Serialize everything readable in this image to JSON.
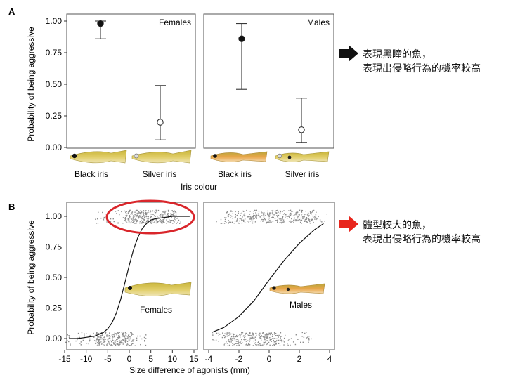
{
  "panel_a": {
    "letter": "A",
    "ylabel": "Probability of being aggressive",
    "xlabel": "Iris colour"
  },
  "panel_b": {
    "letter": "B",
    "ylabel": "Probability of being aggressive",
    "xlabel": "Size difference of agonists (mm)"
  },
  "note_a": {
    "line1": "表現黑瞳的魚，",
    "line2": "表現出侵略行為的機率較高"
  },
  "note_b": {
    "line1": "體型較大的魚，",
    "line2": "表現出侵略行為的機率較高"
  },
  "colors": {
    "arrow_a": "#111111",
    "arrow_b": "#e8251c",
    "highlight": "#d9262b",
    "frame": "#555555"
  },
  "chart_data": [
    {
      "type": "scatter",
      "subtype": "point-with-error-bars",
      "panel": "A",
      "facet": "Females",
      "categories": [
        "Black iris",
        "Silver iris"
      ],
      "values": [
        0.98,
        0.2
      ],
      "lower": [
        0.86,
        0.06
      ],
      "upper": [
        1.0,
        0.49
      ],
      "marker_fill": [
        "#111111",
        "#ffffff"
      ],
      "ylabel": "Probability of being aggressive",
      "xlabel": "Iris colour",
      "yticks": [
        "0.00",
        "0.25",
        "0.50",
        "0.75",
        "1.00"
      ],
      "ylim": [
        0,
        1
      ]
    },
    {
      "type": "scatter",
      "subtype": "point-with-error-bars",
      "panel": "A",
      "facet": "Males",
      "categories": [
        "Black iris",
        "Silver iris"
      ],
      "values": [
        0.86,
        0.14
      ],
      "lower": [
        0.46,
        0.04
      ],
      "upper": [
        0.98,
        0.39
      ],
      "marker_fill": [
        "#111111",
        "#ffffff"
      ],
      "xlabel": "Iris colour",
      "yticks": [
        "0.00",
        "0.25",
        "0.50",
        "0.75",
        "1.00"
      ],
      "ylim": [
        0,
        1
      ]
    },
    {
      "type": "line",
      "subtype": "logistic-fit-with-jittered-points",
      "panel": "B",
      "facet": "Females",
      "ylabel": "Probability of being aggressive",
      "xlabel": "Size difference of agonists (mm)",
      "xticks": [
        "-15",
        "-10",
        "-5",
        "0",
        "5",
        "10",
        "15"
      ],
      "yticks": [
        "0.00",
        "0.25",
        "0.50",
        "0.75",
        "1.00"
      ],
      "xlim": [
        -15,
        15
      ],
      "ylim": [
        0,
        1
      ],
      "curve": {
        "x": [
          -14,
          -12,
          -10,
          -8,
          -6,
          -5,
          -4,
          -3,
          -2,
          -1,
          0,
          1,
          2,
          3,
          4,
          5,
          6,
          8,
          10,
          12,
          14
        ],
        "y": [
          0.0,
          0.0,
          0.01,
          0.02,
          0.05,
          0.08,
          0.13,
          0.21,
          0.32,
          0.46,
          0.6,
          0.73,
          0.83,
          0.9,
          0.94,
          0.97,
          0.98,
          0.99,
          1.0,
          1.0,
          1.0
        ]
      },
      "points_aggressive_1": {
        "y": 1.0,
        "x_range": [
          -8,
          12
        ],
        "dense_range": [
          -1,
          11
        ]
      },
      "points_aggressive_0": {
        "y": 0.0,
        "x_range": [
          -15,
          4
        ],
        "dense_range": [
          -8,
          1
        ]
      },
      "annotation": "circled cluster at y = 1.00"
    },
    {
      "type": "line",
      "subtype": "logistic-fit-with-jittered-points",
      "panel": "B",
      "facet": "Males",
      "xticks": [
        "-4",
        "-2",
        "0",
        "2",
        "4"
      ],
      "yticks": [
        "0.00",
        "0.25",
        "0.50",
        "0.75",
        "1.00"
      ],
      "xlim": [
        -4,
        4
      ],
      "ylim": [
        0,
        1
      ],
      "curve": {
        "x": [
          -3.8,
          -3,
          -2,
          -1,
          0,
          1,
          2,
          3,
          3.6
        ],
        "y": [
          0.05,
          0.09,
          0.18,
          0.31,
          0.48,
          0.64,
          0.78,
          0.89,
          0.94
        ]
      },
      "points_aggressive_1": {
        "y": 1.0,
        "x_range": [
          -3.6,
          3.8
        ],
        "dense_range": [
          -3,
          3
        ]
      },
      "points_aggressive_0": {
        "y": 0.0,
        "x_range": [
          -3.8,
          2.8
        ],
        "dense_range": [
          -3,
          1
        ]
      }
    }
  ]
}
